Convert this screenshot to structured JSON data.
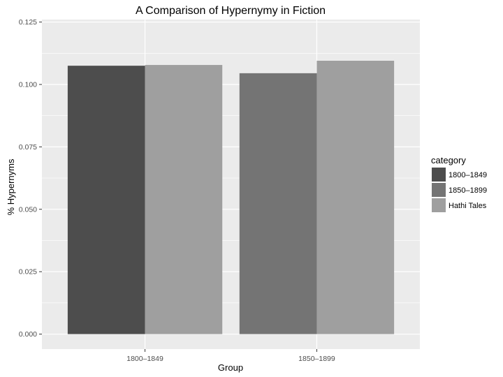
{
  "chart_data": {
    "type": "bar",
    "title": "A Comparison of Hypernymy in Fiction",
    "xlabel": "Group",
    "ylabel": "% Hypernyms",
    "categories": [
      "1800–1849",
      "1850–1899"
    ],
    "series": [
      {
        "name": "1800–1849",
        "color": "#4d4d4d",
        "values": [
          0.1075,
          null
        ]
      },
      {
        "name": "1850–1899",
        "color": "#747474",
        "values": [
          null,
          0.1045
        ]
      },
      {
        "name": "Hathi Tales",
        "color": "#9f9f9f",
        "values": [
          0.1078,
          0.1095
        ]
      }
    ],
    "ylim": [
      -0.006,
      0.126
    ],
    "yticks": [
      0.0,
      0.025,
      0.05,
      0.075,
      0.1,
      0.125
    ],
    "ytick_labels": [
      "0.000",
      "0.025",
      "0.050",
      "0.075",
      "0.100",
      "0.125"
    ],
    "grid": true,
    "legend": {
      "title": "category",
      "placement": "right"
    },
    "panel_color": "#ebebeb",
    "grid_color": "#ffffff"
  }
}
